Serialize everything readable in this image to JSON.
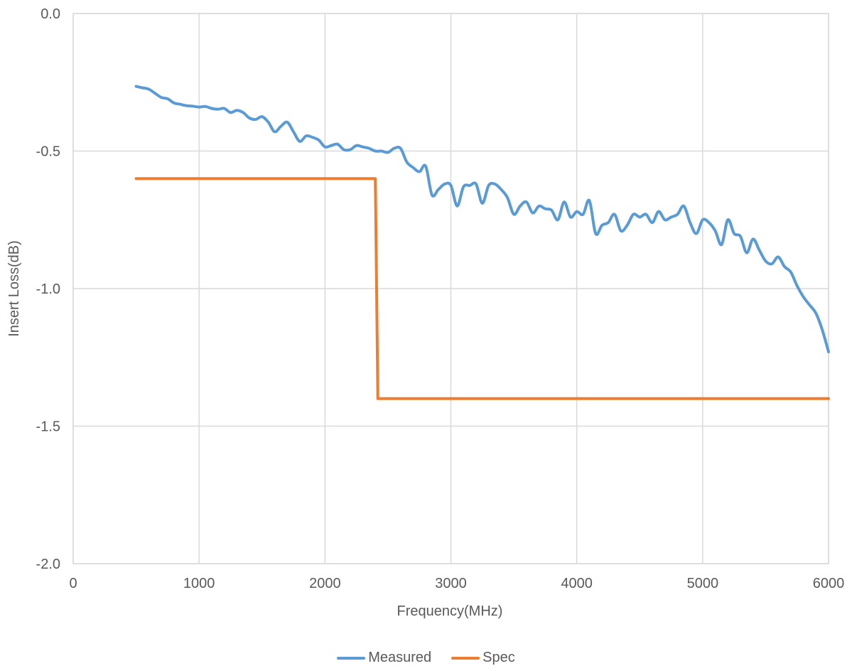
{
  "chart_data": {
    "type": "line",
    "title": "",
    "xlabel": "Frequency(MHz)",
    "ylabel": "Insert Loss(dB)",
    "xlim": [
      0,
      6000
    ],
    "ylim": [
      -2.0,
      0.0
    ],
    "x_ticks": [
      0,
      1000,
      2000,
      3000,
      4000,
      5000,
      6000
    ],
    "y_ticks": [
      "0.0",
      "-0.5",
      "-1.0",
      "-1.5",
      "-2.0"
    ],
    "y_tick_values": [
      0.0,
      -0.5,
      -1.0,
      -1.5,
      -2.0
    ],
    "grid": true,
    "legend_position": "bottom",
    "series": [
      {
        "name": "Measured",
        "color": "#5B9BD5",
        "x": [
          500,
          550,
          600,
          650,
          700,
          750,
          800,
          850,
          900,
          950,
          1000,
          1050,
          1100,
          1150,
          1200,
          1250,
          1300,
          1350,
          1400,
          1450,
          1500,
          1550,
          1600,
          1650,
          1700,
          1750,
          1800,
          1850,
          1900,
          1950,
          2000,
          2050,
          2100,
          2150,
          2200,
          2250,
          2300,
          2350,
          2400,
          2450,
          2500,
          2550,
          2600,
          2650,
          2700,
          2750,
          2800,
          2850,
          2900,
          2950,
          3000,
          3050,
          3100,
          3150,
          3200,
          3250,
          3300,
          3350,
          3400,
          3450,
          3500,
          3550,
          3600,
          3650,
          3700,
          3750,
          3800,
          3850,
          3900,
          3950,
          4000,
          4050,
          4100,
          4150,
          4200,
          4250,
          4300,
          4350,
          4400,
          4450,
          4500,
          4550,
          4600,
          4650,
          4700,
          4750,
          4800,
          4850,
          4900,
          4950,
          5000,
          5050,
          5100,
          5150,
          5200,
          5250,
          5300,
          5350,
          5400,
          5450,
          5500,
          5550,
          5600,
          5650,
          5700,
          5750,
          5800,
          5850,
          5900,
          5950,
          6000
        ],
        "y": [
          -0.265,
          -0.27,
          -0.275,
          -0.29,
          -0.305,
          -0.31,
          -0.325,
          -0.33,
          -0.335,
          -0.337,
          -0.34,
          -0.338,
          -0.345,
          -0.348,
          -0.345,
          -0.36,
          -0.352,
          -0.36,
          -0.38,
          -0.385,
          -0.375,
          -0.395,
          -0.43,
          -0.41,
          -0.395,
          -0.43,
          -0.465,
          -0.445,
          -0.45,
          -0.46,
          -0.485,
          -0.48,
          -0.475,
          -0.495,
          -0.495,
          -0.48,
          -0.485,
          -0.49,
          -0.5,
          -0.5,
          -0.505,
          -0.49,
          -0.49,
          -0.54,
          -0.56,
          -0.575,
          -0.555,
          -0.66,
          -0.64,
          -0.62,
          -0.625,
          -0.7,
          -0.63,
          -0.625,
          -0.62,
          -0.69,
          -0.625,
          -0.62,
          -0.64,
          -0.67,
          -0.73,
          -0.7,
          -0.685,
          -0.725,
          -0.7,
          -0.71,
          -0.715,
          -0.75,
          -0.685,
          -0.74,
          -0.72,
          -0.73,
          -0.68,
          -0.8,
          -0.77,
          -0.76,
          -0.73,
          -0.79,
          -0.77,
          -0.73,
          -0.74,
          -0.73,
          -0.76,
          -0.72,
          -0.75,
          -0.74,
          -0.73,
          -0.7,
          -0.76,
          -0.8,
          -0.75,
          -0.76,
          -0.79,
          -0.84,
          -0.75,
          -0.8,
          -0.81,
          -0.87,
          -0.82,
          -0.86,
          -0.9,
          -0.91,
          -0.885,
          -0.92,
          -0.94,
          -0.99,
          -1.03,
          -1.06,
          -1.09,
          -1.15,
          -1.23
        ],
        "smooth": true
      },
      {
        "name": "Spec",
        "color": "#ED7D31",
        "x": [
          500,
          2400,
          2400,
          2420,
          6000
        ],
        "y": [
          -0.6,
          -0.6,
          -0.6,
          -1.4,
          -1.4
        ],
        "smooth": false
      }
    ]
  }
}
